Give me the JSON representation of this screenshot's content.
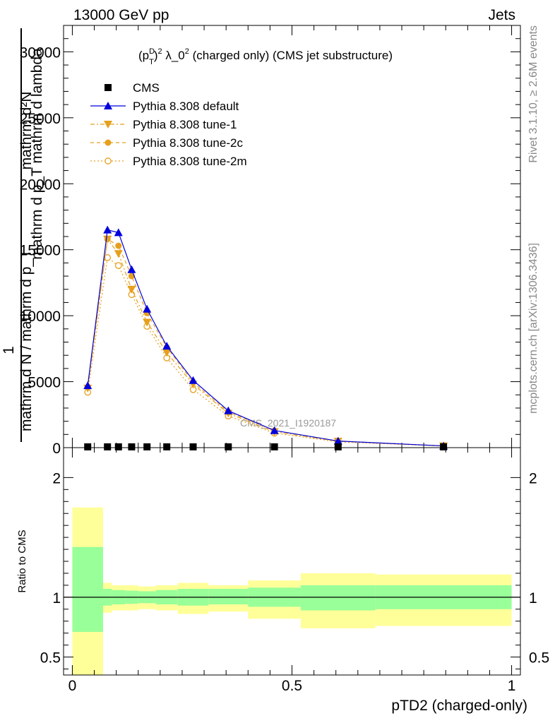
{
  "header": {
    "left": "13000 GeV pp",
    "right": "Jets"
  },
  "side_labels": {
    "rivet": "Rivet 3.1.10, ≥ 2.6M events",
    "mcplots": "mcplots.cern.ch [arXiv:1306.3436]"
  },
  "watermark": "CMS_2021_I1920187",
  "colors": {
    "cms": "#000000",
    "default": "#0000dd",
    "tune": "#e6a01e",
    "band_stat": "#99ff99",
    "band_syst": "#ffff99"
  },
  "chart_data": [
    {
      "type": "line",
      "title": "(p_T^D)^2 λ_0^2 (charged only) (CMS jet substructure)",
      "title_parts": {
        "p": "(p",
        "sup": "D",
        "sub": "T",
        "close": ")",
        "sq1": "2",
        "lam": " λ_0",
        "sq2": "2",
        "rest": " (charged only) (CMS jet substructure)"
      },
      "ylabel_top": "mathrm d²N",
      "ylabel_mid": "mathrm d p_T mathrm d lambda",
      "ylabel_one": "1",
      "ylabel_bottom": "mathrm d N / mathrm d p_T",
      "ylim": [
        0,
        32000
      ],
      "yticks": [
        0,
        5000,
        10000,
        15000,
        20000,
        25000,
        30000
      ],
      "ytick_labels": [
        "0",
        "5000",
        "10000",
        "15000",
        "20000",
        "25000",
        "30000"
      ],
      "xlim": [
        -0.02,
        1.02
      ],
      "legend": [
        {
          "key": "cms",
          "label": "CMS"
        },
        {
          "key": "default",
          "label": "Pythia 8.308 default"
        },
        {
          "key": "tune1",
          "label": "Pythia 8.308 tune-1"
        },
        {
          "key": "tune2c",
          "label": "Pythia 8.308 tune-2c"
        },
        {
          "key": "tune2m",
          "label": "Pythia 8.308 tune-2m"
        }
      ],
      "legend_position": "top-left",
      "x": [
        0.035,
        0.08,
        0.105,
        0.135,
        0.17,
        0.215,
        0.275,
        0.355,
        0.46,
        0.605,
        0.845
      ],
      "series": [
        {
          "key": "cms",
          "values": [
            60,
            60,
            60,
            60,
            60,
            60,
            60,
            60,
            60,
            60,
            60
          ]
        },
        {
          "key": "default",
          "values": [
            4700,
            16500,
            16300,
            13500,
            10500,
            7700,
            5100,
            2800,
            1300,
            500,
            130
          ]
        },
        {
          "key": "tune1",
          "values": [
            4500,
            15800,
            14700,
            12000,
            9500,
            7200,
            4800,
            2600,
            1200,
            480,
            130
          ]
        },
        {
          "key": "tune2c",
          "values": [
            4600,
            15800,
            15300,
            13000,
            10200,
            7600,
            4950,
            2700,
            1300,
            500,
            130
          ]
        },
        {
          "key": "tune2m",
          "values": [
            4200,
            14400,
            13800,
            11600,
            9200,
            6800,
            4400,
            2400,
            1100,
            440,
            120
          ]
        }
      ]
    },
    {
      "type": "area",
      "ylabel": "Ratio to CMS",
      "xlabel": "pTD2 (charged-only)",
      "ylim": [
        0.35,
        2.25
      ],
      "yticks": [
        0.5,
        1,
        2
      ],
      "ytick_labels": [
        "0.5",
        "1",
        "2"
      ],
      "xticks": [
        0,
        0.5,
        1
      ],
      "xtick_labels": [
        "0",
        "0.5",
        "1"
      ],
      "xlim": [
        -0.02,
        1.02
      ],
      "reference_line": 1,
      "bins": [
        {
          "lo": 0.0,
          "hi": 0.07,
          "stat_lo": 0.71,
          "stat_hi": 1.42,
          "tot_lo": 0.35,
          "tot_hi": 1.75
        },
        {
          "lo": 0.07,
          "hi": 0.09,
          "stat_lo": 0.93,
          "stat_hi": 1.07,
          "tot_lo": 0.87,
          "tot_hi": 1.12
        },
        {
          "lo": 0.09,
          "hi": 0.12,
          "stat_lo": 0.94,
          "stat_hi": 1.06,
          "tot_lo": 0.89,
          "tot_hi": 1.1
        },
        {
          "lo": 0.12,
          "hi": 0.15,
          "stat_lo": 0.945,
          "stat_hi": 1.055,
          "tot_lo": 0.89,
          "tot_hi": 1.1
        },
        {
          "lo": 0.15,
          "hi": 0.19,
          "stat_lo": 0.95,
          "stat_hi": 1.05,
          "tot_lo": 0.9,
          "tot_hi": 1.09
        },
        {
          "lo": 0.19,
          "hi": 0.24,
          "stat_lo": 0.94,
          "stat_hi": 1.06,
          "tot_lo": 0.89,
          "tot_hi": 1.1
        },
        {
          "lo": 0.24,
          "hi": 0.31,
          "stat_lo": 0.93,
          "stat_hi": 1.07,
          "tot_lo": 0.86,
          "tot_hi": 1.12
        },
        {
          "lo": 0.31,
          "hi": 0.4,
          "stat_lo": 0.94,
          "stat_hi": 1.07,
          "tot_lo": 0.88,
          "tot_hi": 1.1
        },
        {
          "lo": 0.4,
          "hi": 0.52,
          "stat_lo": 0.92,
          "stat_hi": 1.08,
          "tot_lo": 0.82,
          "tot_hi": 1.14
        },
        {
          "lo": 0.52,
          "hi": 0.69,
          "stat_lo": 0.89,
          "stat_hi": 1.1,
          "tot_lo": 0.74,
          "tot_hi": 1.2
        },
        {
          "lo": 0.69,
          "hi": 1.0,
          "stat_lo": 0.9,
          "stat_hi": 1.1,
          "tot_lo": 0.76,
          "tot_hi": 1.19
        }
      ]
    }
  ]
}
